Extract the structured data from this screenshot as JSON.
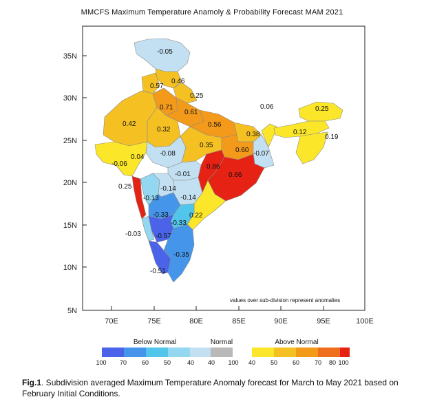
{
  "title": "MMCFS  Maximum Temperature Anamoly & Probability Forecast MAM 2021",
  "axes": {
    "lat_labels": [
      "35N",
      "30N",
      "25N",
      "20N",
      "15N",
      "10N",
      "5N"
    ],
    "lon_labels": [
      "70E",
      "75E",
      "80E",
      "85E",
      "90E",
      "95E",
      "100E"
    ]
  },
  "note": "values over sub-division represent anomalies",
  "anomalies": [
    "-0.05",
    "0.46",
    "0.57",
    "0.25",
    "0.71",
    "0.61",
    "0.06",
    "0.25",
    "0.42",
    "0.56",
    "0.32",
    "0.38",
    "0.12",
    "0.19",
    "0.35",
    "0.60",
    "-0.07",
    "-0.08",
    "0.04",
    "-0.06",
    "0.86",
    "-0.01",
    "0.66",
    "0.25",
    "-0.14",
    "-0.13",
    "-0.14",
    "-0.33",
    "0.22",
    "-0.33",
    "-0.03",
    "-0.57",
    "-0.35",
    "-0.51"
  ],
  "legend": {
    "below": {
      "title": "Below Normal",
      "colors": [
        "#4a63e8",
        "#4596ea",
        "#52c6ea",
        "#93d7f0",
        "#c3e0f3"
      ],
      "ticks": [
        "100",
        "70",
        "60",
        "50",
        "40"
      ]
    },
    "normal": {
      "title": "Normal",
      "color": "#b9b9b9",
      "ticks": [
        "40",
        "100"
      ]
    },
    "above": {
      "title": "Above Normal",
      "colors": [
        "#fbe62a",
        "#f5c122",
        "#f39a1a",
        "#ee6e1c",
        "#e62214"
      ],
      "ticks": [
        "40",
        "50",
        "60",
        "70",
        "80",
        "100"
      ]
    }
  },
  "caption": {
    "label": "Fig.1",
    "text": ". Subdivision averaged Maximum Temperature Anomaly forecast for March to May 2021 based on February Initial Conditions."
  }
}
